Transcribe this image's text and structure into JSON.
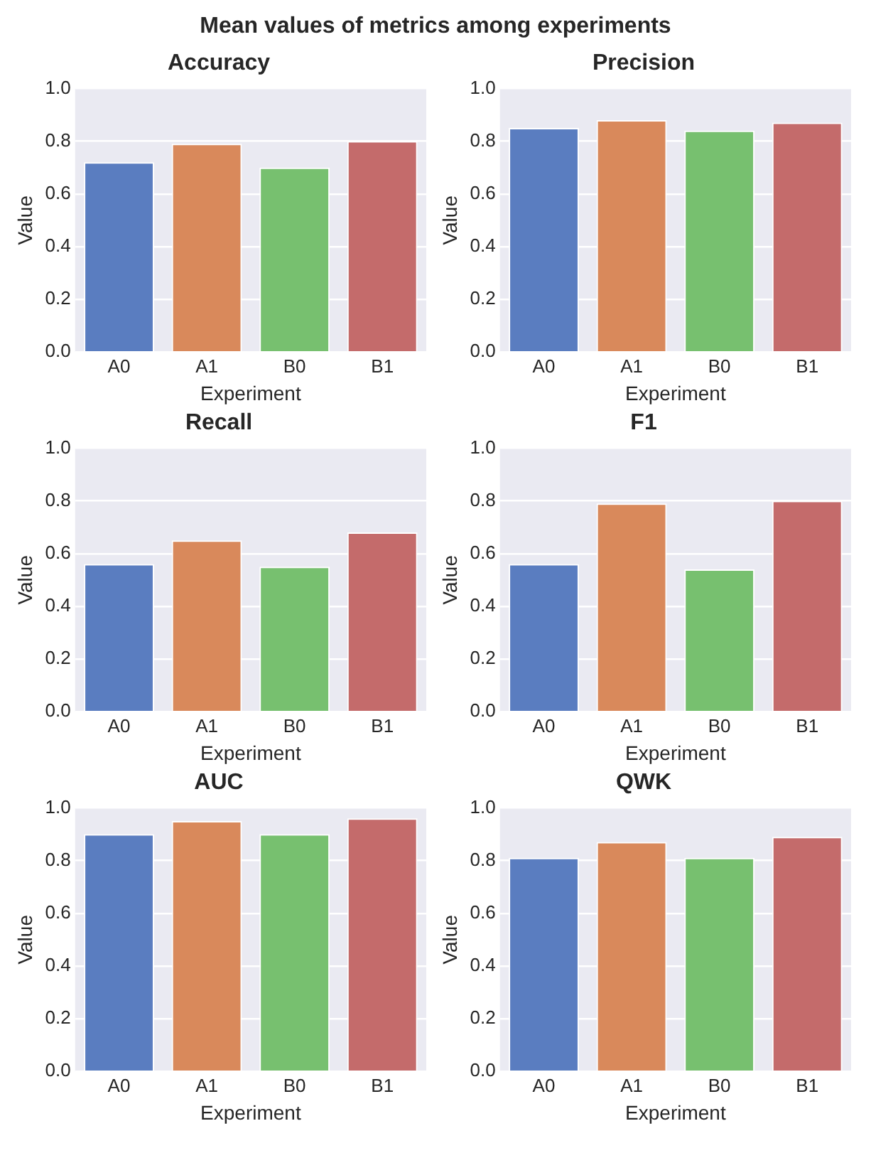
{
  "chart_data": [
    {
      "type": "bar",
      "title": "Accuracy",
      "annotations": [
        "Mean values of metrics among experiments"
      ],
      "categories": [
        "A0",
        "A1",
        "B0",
        "B1"
      ],
      "values": [
        0.72,
        0.79,
        0.7,
        0.8
      ],
      "colors": [
        "#5a7dc0",
        "#d9895b",
        "#77c06f",
        "#c46b6b"
      ],
      "xlabel": "Experiment",
      "ylabel": "Value",
      "ylim": [
        0,
        1
      ],
      "yticks": [
        {
          "value": 0,
          "label": "0.0"
        },
        {
          "value": 0.2,
          "label": "0.2"
        },
        {
          "value": 0.4,
          "label": "0.4"
        },
        {
          "value": 0.6,
          "label": "0.6"
        },
        {
          "value": 0.8,
          "label": "0.8"
        },
        {
          "value": 1,
          "label": "1.0"
        }
      ],
      "grid": "y"
    },
    {
      "type": "bar",
      "title": "Precision",
      "categories": [
        "A0",
        "A1",
        "B0",
        "B1"
      ],
      "values": [
        0.85,
        0.88,
        0.84,
        0.87
      ],
      "colors": [
        "#5a7dc0",
        "#d9895b",
        "#77c06f",
        "#c46b6b"
      ],
      "xlabel": "Experiment",
      "ylabel": "Value",
      "ylim": [
        0,
        1
      ],
      "yticks": [
        {
          "value": 0,
          "label": "0.0"
        },
        {
          "value": 0.2,
          "label": "0.2"
        },
        {
          "value": 0.4,
          "label": "0.4"
        },
        {
          "value": 0.6,
          "label": "0.6"
        },
        {
          "value": 0.8,
          "label": "0.8"
        },
        {
          "value": 1,
          "label": "1.0"
        }
      ],
      "grid": "y"
    },
    {
      "type": "bar",
      "title": "Recall",
      "categories": [
        "A0",
        "A1",
        "B0",
        "B1"
      ],
      "values": [
        0.56,
        0.65,
        0.55,
        0.68
      ],
      "colors": [
        "#5a7dc0",
        "#d9895b",
        "#77c06f",
        "#c46b6b"
      ],
      "xlabel": "Experiment",
      "ylabel": "Value",
      "ylim": [
        0,
        1
      ],
      "yticks": [
        {
          "value": 0,
          "label": "0.0"
        },
        {
          "value": 0.2,
          "label": "0.2"
        },
        {
          "value": 0.4,
          "label": "0.4"
        },
        {
          "value": 0.6,
          "label": "0.6"
        },
        {
          "value": 0.8,
          "label": "0.8"
        },
        {
          "value": 1,
          "label": "1.0"
        }
      ],
      "grid": "y"
    },
    {
      "type": "bar",
      "title": "F1",
      "categories": [
        "A0",
        "A1",
        "B0",
        "B1"
      ],
      "values": [
        0.56,
        0.79,
        0.54,
        0.8
      ],
      "colors": [
        "#5a7dc0",
        "#d9895b",
        "#77c06f",
        "#c46b6b"
      ],
      "xlabel": "Experiment",
      "ylabel": "Value",
      "ylim": [
        0,
        1
      ],
      "yticks": [
        {
          "value": 0,
          "label": "0.0"
        },
        {
          "value": 0.2,
          "label": "0.2"
        },
        {
          "value": 0.4,
          "label": "0.4"
        },
        {
          "value": 0.6,
          "label": "0.6"
        },
        {
          "value": 0.8,
          "label": "0.8"
        },
        {
          "value": 1,
          "label": "1.0"
        }
      ],
      "grid": "y"
    },
    {
      "type": "bar",
      "title": "AUC",
      "categories": [
        "A0",
        "A1",
        "B0",
        "B1"
      ],
      "values": [
        0.9,
        0.95,
        0.9,
        0.96
      ],
      "colors": [
        "#5a7dc0",
        "#d9895b",
        "#77c06f",
        "#c46b6b"
      ],
      "xlabel": "Experiment",
      "ylabel": "Value",
      "ylim": [
        0,
        1
      ],
      "yticks": [
        {
          "value": 0,
          "label": "0.0"
        },
        {
          "value": 0.2,
          "label": "0.2"
        },
        {
          "value": 0.4,
          "label": "0.4"
        },
        {
          "value": 0.6,
          "label": "0.6"
        },
        {
          "value": 0.8,
          "label": "0.8"
        },
        {
          "value": 1,
          "label": "1.0"
        }
      ],
      "grid": "y"
    },
    {
      "type": "bar",
      "title": "QWK",
      "categories": [
        "A0",
        "A1",
        "B0",
        "B1"
      ],
      "values": [
        0.81,
        0.87,
        0.81,
        0.89
      ],
      "colors": [
        "#5a7dc0",
        "#d9895b",
        "#77c06f",
        "#c46b6b"
      ],
      "xlabel": "Experiment",
      "ylabel": "Value",
      "ylim": [
        0,
        1
      ],
      "yticks": [
        {
          "value": 0,
          "label": "0.0"
        },
        {
          "value": 0.2,
          "label": "0.2"
        },
        {
          "value": 0.4,
          "label": "0.4"
        },
        {
          "value": 0.6,
          "label": "0.6"
        },
        {
          "value": 0.8,
          "label": "0.8"
        },
        {
          "value": 1,
          "label": "1.0"
        }
      ],
      "grid": "y"
    }
  ]
}
